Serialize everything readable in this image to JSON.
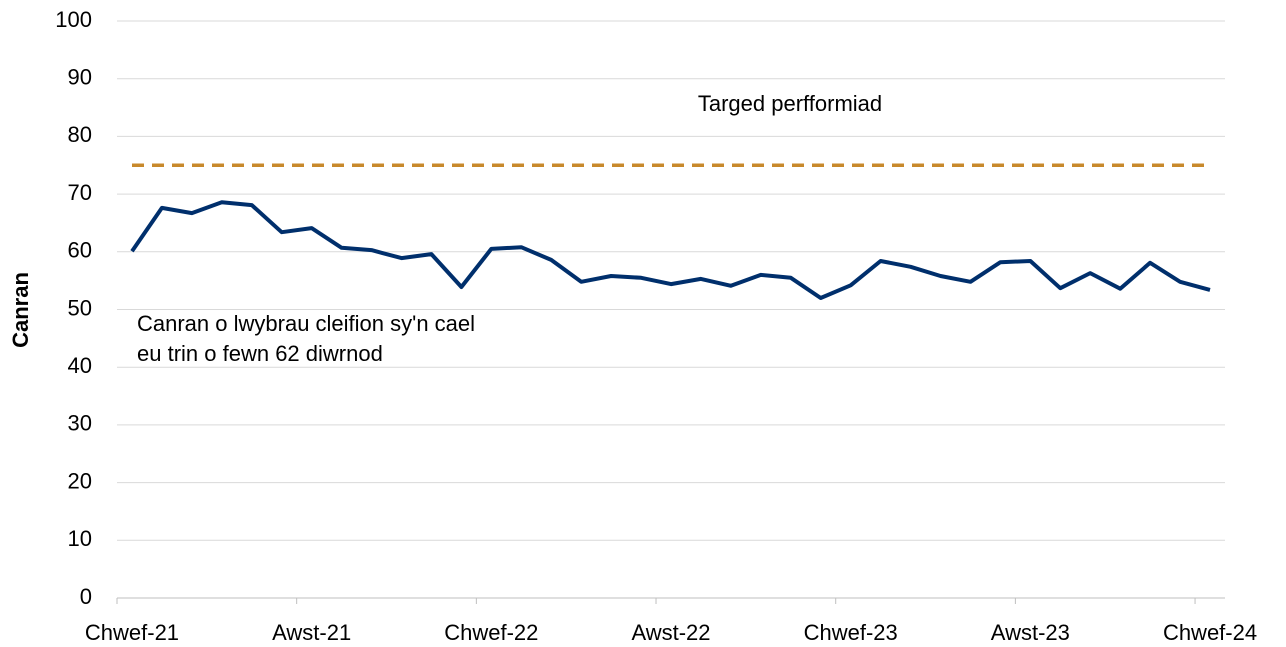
{
  "chart_data": {
    "type": "line",
    "y_label": "Canran",
    "categories": [
      "Chwef-21",
      null,
      null,
      null,
      null,
      null,
      "Awst-21",
      null,
      null,
      null,
      null,
      null,
      "Chwef-22",
      null,
      null,
      null,
      null,
      null,
      "Awst-22",
      null,
      null,
      null,
      null,
      null,
      "Chwef-23",
      null,
      null,
      null,
      null,
      null,
      "Awst-23",
      null,
      null,
      null,
      null,
      null,
      "Chwef-24"
    ],
    "series": [
      {
        "color": "#002f6c",
        "dashed": false,
        "values": [
          60.1,
          67.6,
          66.7,
          68.6,
          68.1,
          63.4,
          64.1,
          60.7,
          60.3,
          58.9,
          59.6,
          53.9,
          60.5,
          60.8,
          58.6,
          54.8,
          55.8,
          55.5,
          54.4,
          55.3,
          54.1,
          56.0,
          55.5,
          52.0,
          54.2,
          58.4,
          57.4,
          55.8,
          54.8,
          58.2,
          58.4,
          53.7,
          56.3,
          53.6,
          58.1,
          54.8,
          53.4
        ]
      },
      {
        "color": "#c8892b",
        "dashed": true,
        "values": [
          75,
          75,
          75,
          75,
          75,
          75,
          75,
          75,
          75,
          75,
          75,
          75,
          75,
          75,
          75,
          75,
          75,
          75,
          75,
          75,
          75,
          75,
          75,
          75,
          75,
          75,
          75,
          75,
          75,
          75,
          75,
          75,
          75,
          75,
          75,
          75,
          75
        ]
      }
    ],
    "annotations": [
      "Targed perfformiad",
      "Canran o lwybrau cleifion sy'n cael",
      "eu trin o fewn 62 diwrnod"
    ],
    "ylim": [
      0,
      100
    ],
    "yticks": [
      0,
      10,
      20,
      30,
      40,
      50,
      60,
      70,
      80,
      90,
      100
    ],
    "grid": true
  }
}
